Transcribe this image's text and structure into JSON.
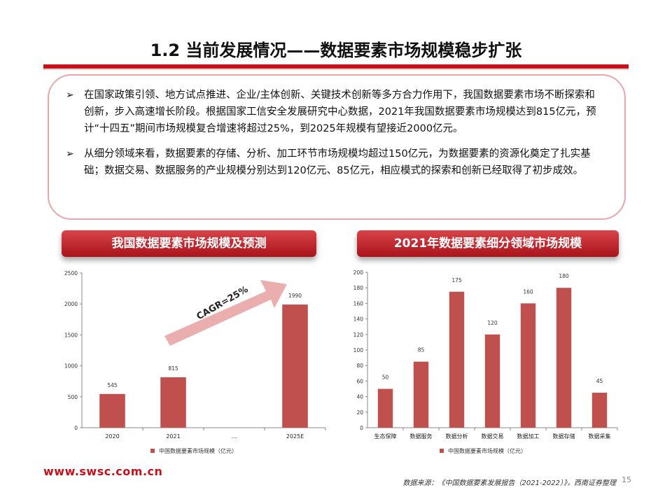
{
  "slide": {
    "title": "1.2 当前发展情况——数据要素市场规模稳步扩张",
    "bullets": [
      "在国家政策引领、地方试点推进、企业/主体创新、关键技术创新等多方合力作用下，我国数据要素市场不断探索和创新，步入高速增长阶段。根据国家工信安全发展研究中心数据，2021年我国数据要素市场规模达到815亿元，预计“十四五”期间市场规模复合增速将超过25%，到2025年规模有望接近2000亿元。",
      "从细分领域来看，数据要素的存储、分析、加工环节市场规模均超过150亿元，为数据要素的资源化奠定了扎实基础；数据交易、数据服务的产业规模分别达到120亿元、85亿元，相应模式的探索和创新已经取得了初步成效。"
    ],
    "bullet_marker": "➢",
    "chart1_title": "我国数据要素市场规模及预测",
    "chart2_title": "2021年数据要素细分领域市场规模",
    "cagr_label": "CAGR=25%",
    "footer_url": "www.swsc.com.cn",
    "footer_source": "数据来源：《中国数据要素发展报告（2021-2022）》，西南证券整理",
    "page_number": "15"
  },
  "colors": {
    "accent": "#c8101a",
    "bar": "#c0504d",
    "arrow": "#e8a0a0"
  },
  "chart_data": [
    {
      "type": "bar",
      "categories": [
        "2020",
        "2021",
        "…",
        "2025E"
      ],
      "values": [
        545,
        815,
        null,
        1990
      ],
      "data_labels": [
        "545",
        "815",
        "",
        "1990"
      ],
      "series": [
        {
          "name": "中国数据要素市场规模（亿元）",
          "values": [
            545,
            815,
            null,
            1990
          ]
        }
      ],
      "ylim": [
        0,
        2500
      ],
      "yticks": [
        0,
        500,
        1000,
        1500,
        2000,
        2500
      ],
      "annotation": "CAGR=25%",
      "legend": "bottom"
    },
    {
      "type": "bar",
      "categories": [
        "生态保障",
        "数据服务",
        "数据分析",
        "数据交易",
        "数据加工",
        "数据存储",
        "数据采集"
      ],
      "values": [
        50,
        85,
        175,
        120,
        160,
        180,
        45
      ],
      "series": [
        {
          "name": "中国数据要素市场规模（亿元）",
          "values": [
            50,
            85,
            175,
            120,
            160,
            180,
            45
          ]
        }
      ],
      "ylim": [
        0,
        200
      ],
      "yticks": [
        0,
        20,
        40,
        60,
        80,
        100,
        120,
        140,
        160,
        180,
        200
      ],
      "legend": "bottom"
    }
  ]
}
